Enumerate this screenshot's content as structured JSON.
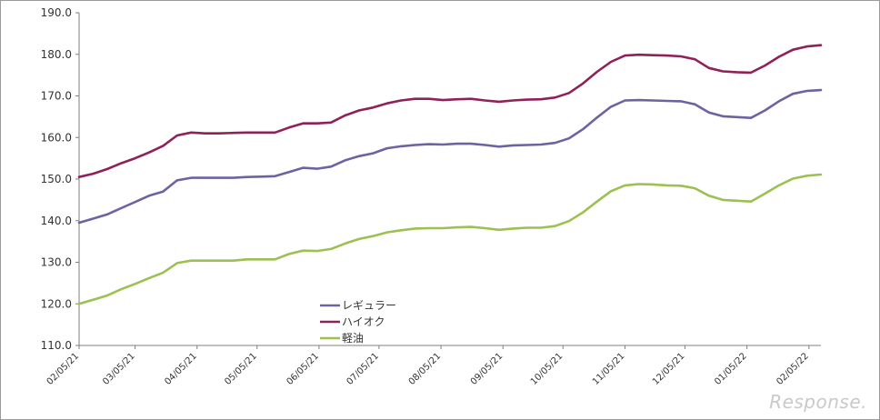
{
  "brand": {
    "text": "Response."
  },
  "chart_data": {
    "type": "line",
    "title": "",
    "xlabel": "",
    "ylabel": "",
    "ylim": [
      110,
      190
    ],
    "y_ticks": [
      "110.0",
      "120.0",
      "130.0",
      "140.0",
      "150.0",
      "160.0",
      "170.0",
      "180.0",
      "190.0"
    ],
    "x_tick_labels": [
      "02/05/21",
      "03/05/21",
      "04/05/21",
      "05/05/21",
      "06/05/21",
      "07/05/21",
      "08/05/21",
      "09/05/21",
      "10/05/21",
      "11/05/21",
      "12/05/21",
      "01/05/22",
      "02/05/22"
    ],
    "x": [
      "2021-02-01",
      "2021-02-08",
      "2021-02-15",
      "2021-02-22",
      "2021-03-01",
      "2021-03-08",
      "2021-03-15",
      "2021-03-22",
      "2021-03-29",
      "2021-04-05",
      "2021-04-12",
      "2021-04-19",
      "2021-04-26",
      "2021-05-03",
      "2021-05-10",
      "2021-05-17",
      "2021-05-24",
      "2021-05-31",
      "2021-06-07",
      "2021-06-14",
      "2021-06-21",
      "2021-06-28",
      "2021-07-05",
      "2021-07-12",
      "2021-07-19",
      "2021-07-26",
      "2021-08-02",
      "2021-08-09",
      "2021-08-16",
      "2021-08-23",
      "2021-08-30",
      "2021-09-06",
      "2021-09-13",
      "2021-09-20",
      "2021-09-27",
      "2021-10-04",
      "2021-10-11",
      "2021-10-18",
      "2021-10-25",
      "2021-11-01",
      "2021-11-08",
      "2021-11-15",
      "2021-11-22",
      "2021-11-29",
      "2021-12-06",
      "2021-12-13",
      "2021-12-20",
      "2021-12-27",
      "2022-01-03",
      "2022-01-10",
      "2022-01-17",
      "2022-01-24",
      "2022-01-31",
      "2022-02-07"
    ],
    "grid": false,
    "legend": "bottom-left",
    "series": [
      {
        "name": "レギュラー",
        "color": "#6a64a0",
        "values": [
          139.5,
          140.5,
          141.5,
          143.0,
          144.5,
          146.0,
          147.0,
          149.7,
          150.3,
          150.3,
          150.3,
          150.3,
          150.5,
          150.6,
          150.7,
          151.7,
          152.7,
          152.5,
          153.0,
          154.5,
          155.5,
          156.2,
          157.4,
          157.9,
          158.2,
          158.4,
          158.3,
          158.5,
          158.5,
          158.2,
          157.8,
          158.1,
          158.2,
          158.3,
          158.7,
          159.8,
          162.0,
          164.8,
          167.4,
          168.9,
          169.0,
          168.9,
          168.8,
          168.7,
          168.0,
          166.0,
          165.1,
          164.9,
          164.7,
          166.5,
          168.7,
          170.5,
          171.2,
          171.4
        ]
      },
      {
        "name": "ハイオク",
        "color": "#8e2258",
        "values": [
          150.5,
          151.3,
          152.4,
          153.8,
          155.0,
          156.4,
          158.0,
          160.5,
          161.2,
          161.0,
          161.0,
          161.1,
          161.2,
          161.2,
          161.2,
          162.4,
          163.4,
          163.4,
          163.6,
          165.3,
          166.5,
          167.2,
          168.2,
          168.9,
          169.3,
          169.3,
          169.0,
          169.2,
          169.3,
          168.9,
          168.6,
          168.9,
          169.1,
          169.2,
          169.6,
          170.7,
          173.0,
          175.8,
          178.2,
          179.7,
          179.9,
          179.8,
          179.7,
          179.5,
          178.8,
          176.7,
          175.9,
          175.7,
          175.6,
          177.3,
          179.4,
          181.1,
          181.9,
          182.2
        ]
      },
      {
        "name": "軽油",
        "color": "#9cc052",
        "values": [
          120.0,
          121.0,
          122.0,
          123.5,
          124.8,
          126.2,
          127.5,
          129.8,
          130.4,
          130.4,
          130.4,
          130.4,
          130.7,
          130.7,
          130.7,
          132.0,
          132.8,
          132.7,
          133.2,
          134.5,
          135.6,
          136.3,
          137.2,
          137.7,
          138.1,
          138.2,
          138.2,
          138.4,
          138.5,
          138.2,
          137.8,
          138.1,
          138.3,
          138.3,
          138.7,
          139.9,
          142.0,
          144.6,
          147.1,
          148.5,
          148.8,
          148.7,
          148.5,
          148.4,
          147.8,
          146.0,
          145.0,
          144.8,
          144.6,
          146.5,
          148.5,
          150.1,
          150.8,
          151.1
        ]
      }
    ]
  }
}
